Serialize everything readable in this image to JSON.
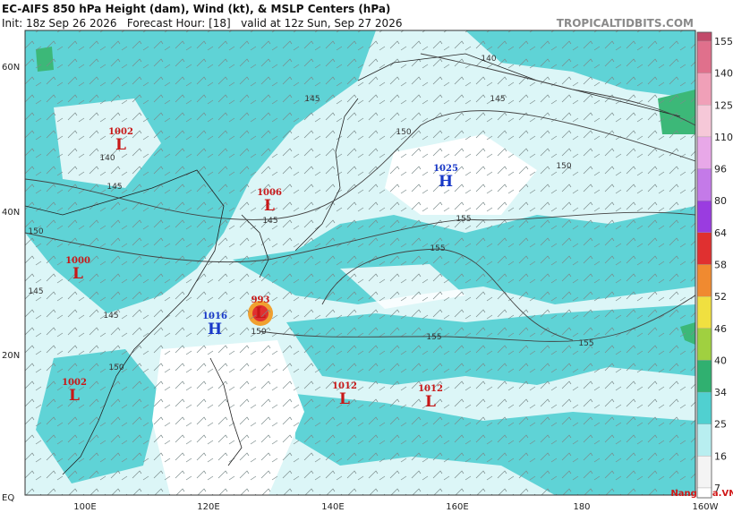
{
  "header": {
    "title": "EC-AIFS 850 hPa Height (dam), Wind (kt), & MSLP Centers (hPa)",
    "subtitle": "Init: 18z Sep 26 2026   Forecast Hour: [18]   valid at 12z Sun, Sep 27 2026",
    "site": "TROPICALTIDBITS.COM"
  },
  "axes": {
    "lat_labels": [
      "60N",
      "40N",
      "20N",
      "EQ"
    ],
    "lon_labels": [
      "100E",
      "120E",
      "140E",
      "160E",
      "180",
      "160W"
    ]
  },
  "pressure_centers": [
    {
      "kind": "L",
      "value": 1002
    },
    {
      "kind": "L",
      "value": 1006
    },
    {
      "kind": "H",
      "value": 1025
    },
    {
      "kind": "L",
      "value": 1000
    },
    {
      "kind": "L",
      "value": 993
    },
    {
      "kind": "H",
      "value": 1016
    },
    {
      "kind": "L",
      "value": 1002
    },
    {
      "kind": "L",
      "value": 1012
    },
    {
      "kind": "L",
      "value": 1012
    }
  ],
  "contour_labels": [
    140,
    145,
    150,
    145,
    145,
    150,
    150,
    155,
    155,
    155,
    155,
    140,
    145,
    150,
    150,
    145,
    145
  ],
  "colorbar": {
    "labels": [
      155,
      140,
      125,
      110,
      96,
      80,
      64,
      58,
      52,
      46,
      40,
      34,
      25,
      16,
      7
    ],
    "colors": [
      "#c24a6a",
      "#e0708c",
      "#f0a0b8",
      "#f6c8d8",
      "#e8a8e8",
      "#c47ae8",
      "#9a3ce0",
      "#e03030",
      "#f08a30",
      "#f0e040",
      "#a0d040",
      "#30b070",
      "#50d0d0",
      "#b8eef0",
      "#f4f4f4",
      "#ffffff"
    ]
  },
  "watermark": "NangMua.VN"
}
